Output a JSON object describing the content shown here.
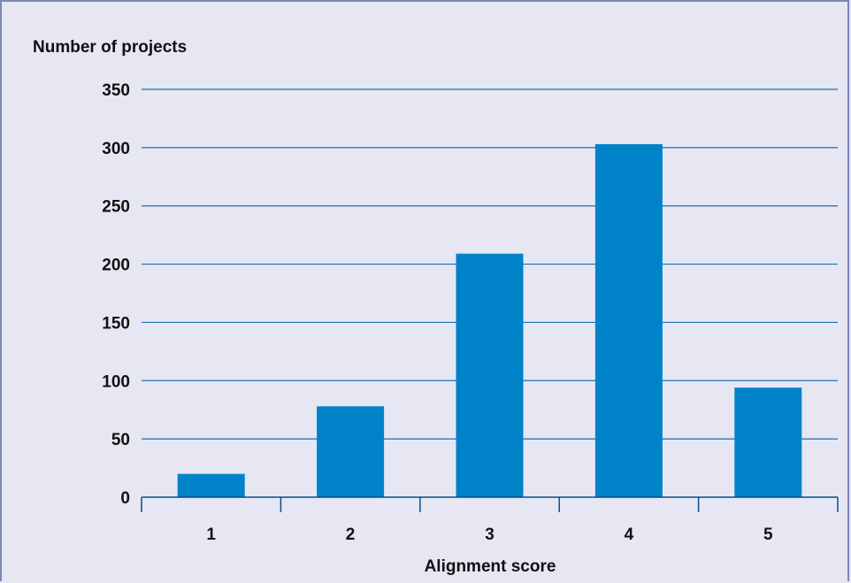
{
  "chart_data": {
    "type": "bar",
    "ylabel": "Number of projects",
    "xlabel": "Alignment score",
    "categories": [
      "1",
      "2",
      "3",
      "4",
      "5"
    ],
    "values": [
      20,
      78,
      209,
      303,
      94
    ],
    "ylim": [
      0,
      350
    ],
    "yticks": [
      "0",
      "50",
      "100",
      "150",
      "200",
      "250",
      "300",
      "350"
    ],
    "grid": true,
    "bar_color": "#0083c9",
    "grid_color": "#1a6fb5",
    "axis_color": "#0a4e8c"
  }
}
